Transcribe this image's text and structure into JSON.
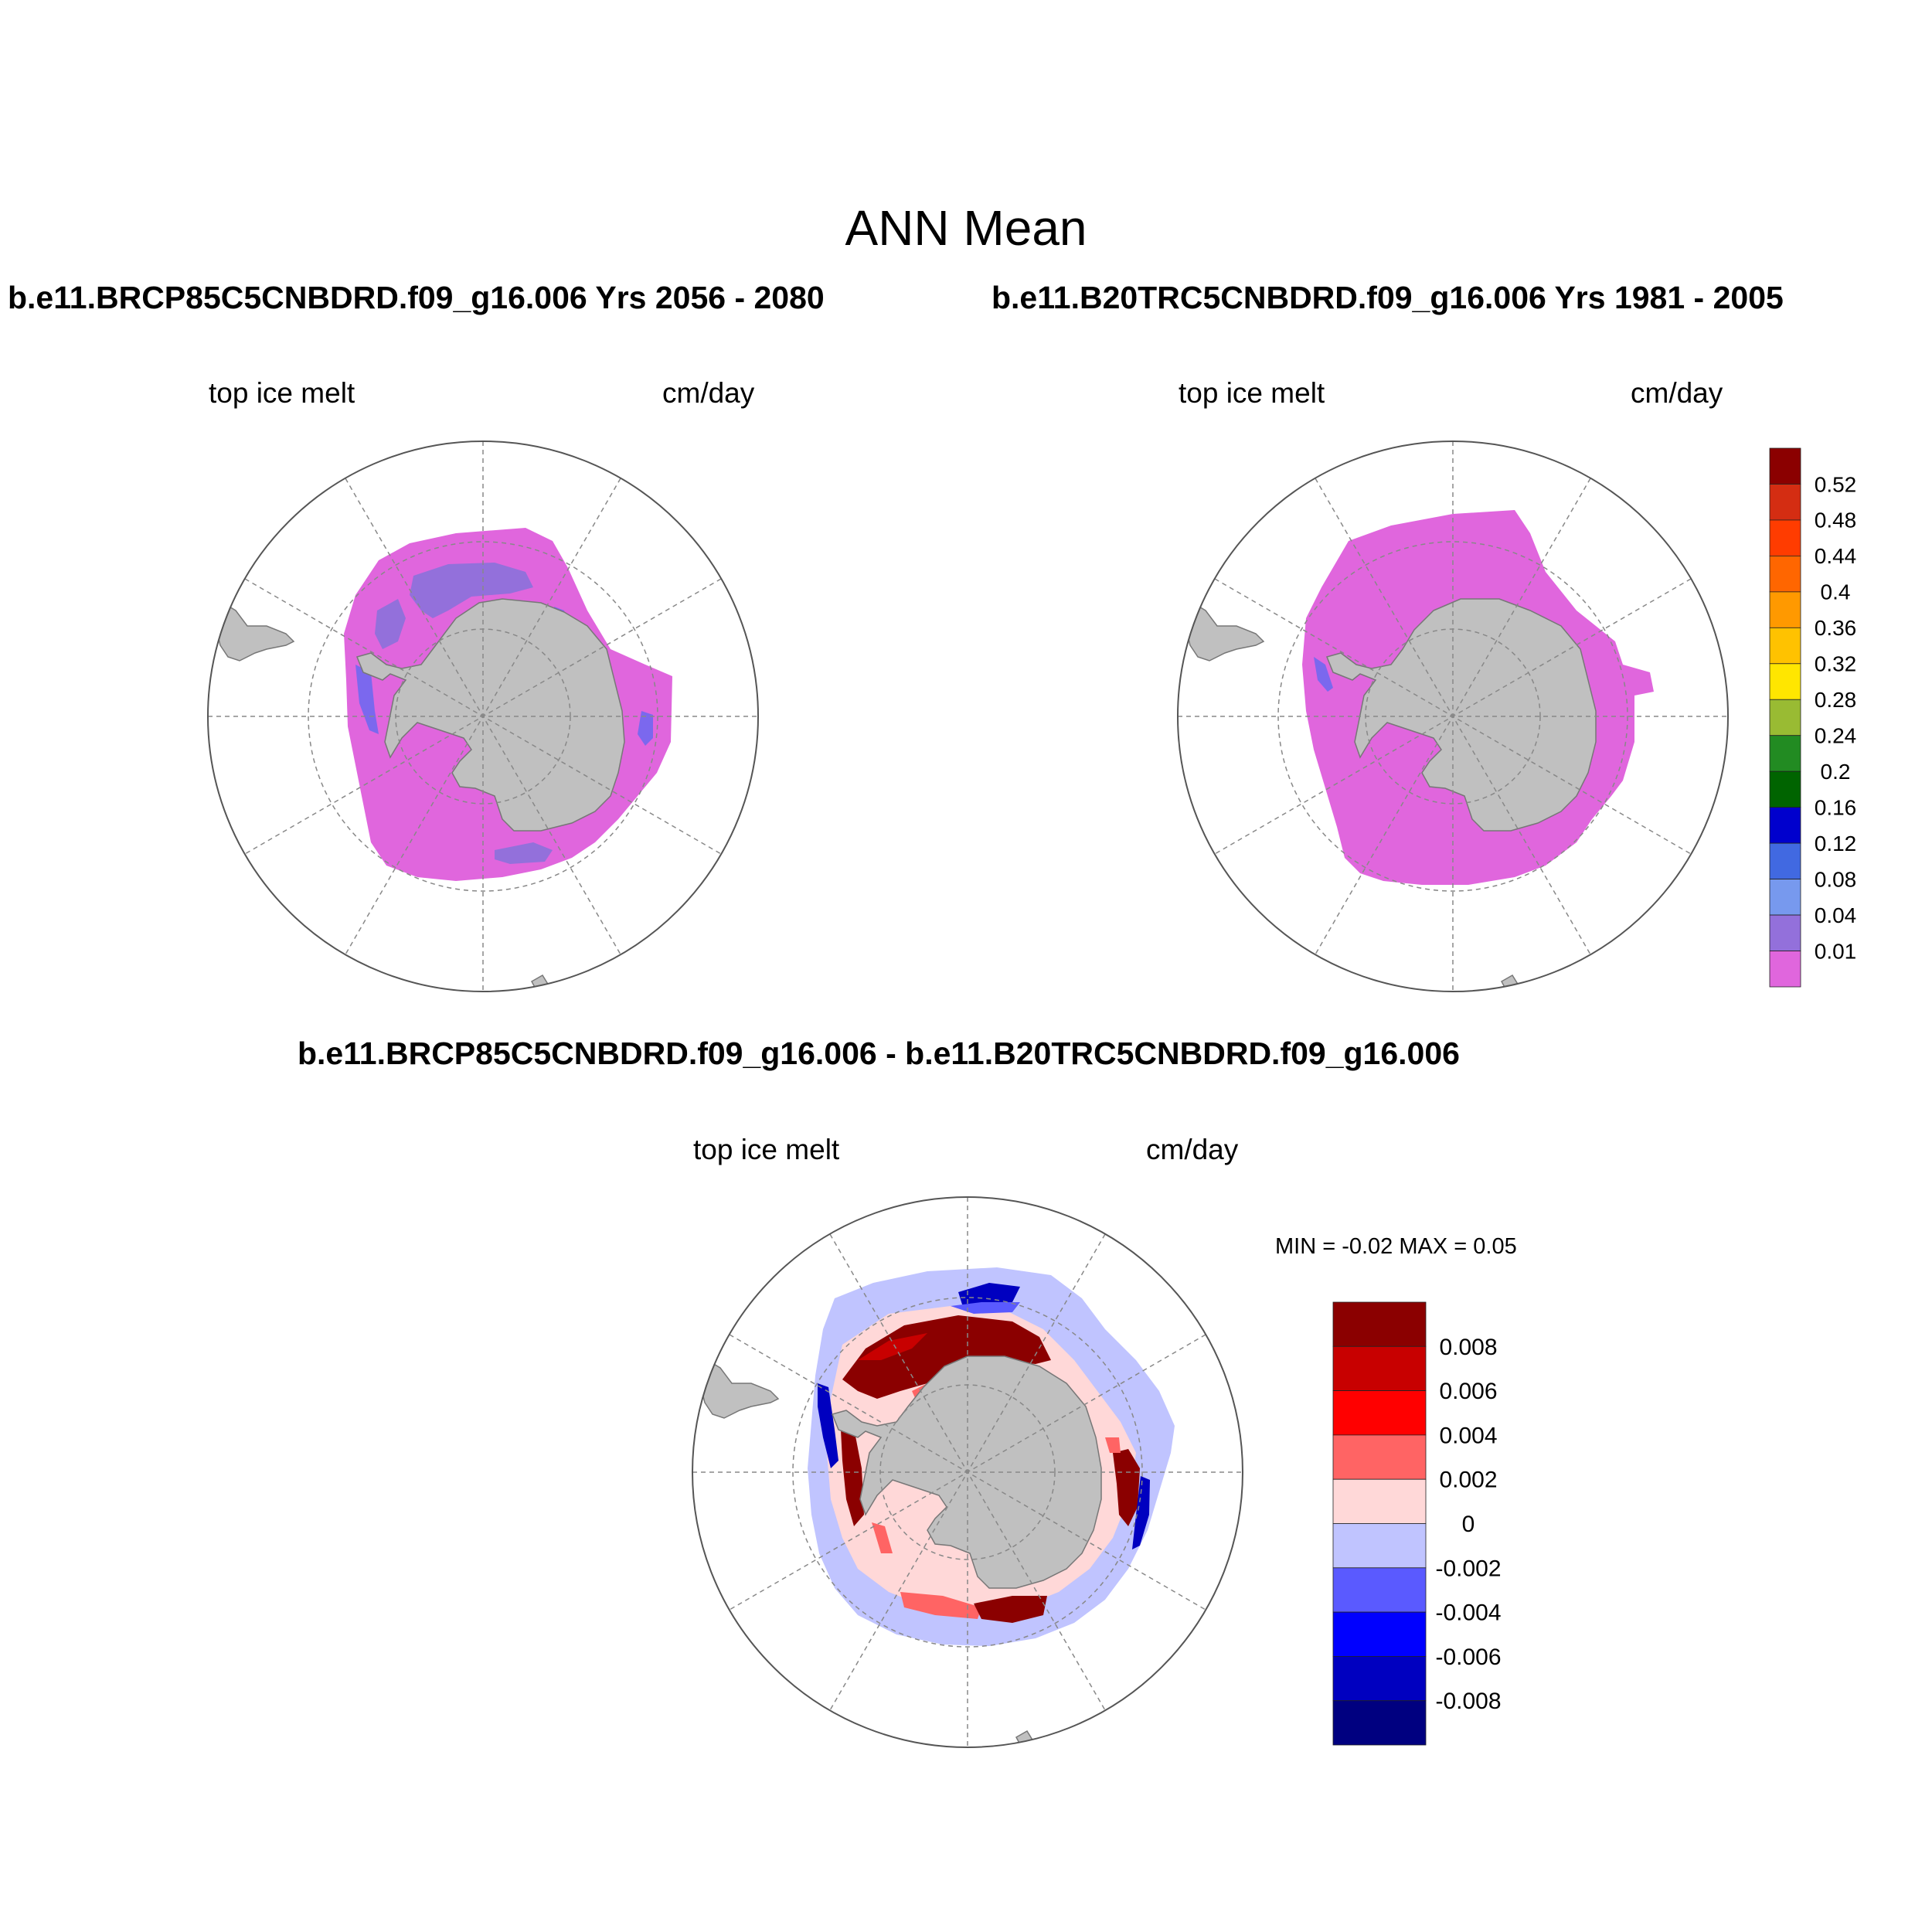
{
  "title": "ANN Mean",
  "panels": [
    {
      "id": "future",
      "case_title": "b.e11.BRCP85C5CNBDRD.f09_g16.006  Yrs 2056 - 2080",
      "variable": "top ice melt",
      "units": "cm/day"
    },
    {
      "id": "historical",
      "case_title": "b.e11.B20TRC5CNBDRD.f09_g16.006  Yrs 1981 - 2005",
      "variable": "top ice melt",
      "units": "cm/day"
    },
    {
      "id": "difference",
      "case_title": "b.e11.BRCP85C5CNBDRD.f09_g16.006 - b.e11.B20TRC5CNBDRD.f09_g16.006",
      "variable": "top ice melt",
      "units": "cm/day",
      "min_max": "MIN =  -0.02 MAX =   0.05"
    }
  ],
  "colorbar_main": {
    "labels": [
      "0.52",
      "0.48",
      "0.44",
      "0.4",
      "0.36",
      "0.32",
      "0.28",
      "0.24",
      "0.2",
      "0.16",
      "0.12",
      "0.08",
      "0.04",
      "0.01"
    ],
    "colors": [
      "#8b0000",
      "#d42d12",
      "#ff3c00",
      "#ff6600",
      "#ff9900",
      "#ffc200",
      "#ffe600",
      "#99bb33",
      "#228b22",
      "#006400",
      "#0000cd",
      "#4169e1",
      "#7799ee",
      "#9370db",
      "#e066dd"
    ]
  },
  "colorbar_diff": {
    "labels": [
      "0.008",
      "0.006",
      "0.004",
      "0.002",
      "0",
      "-0.002",
      "-0.004",
      "-0.006",
      "-0.008"
    ],
    "colors": [
      "#8b0000",
      "#c80000",
      "#ff0000",
      "#ff6464",
      "#ffd8d8",
      "#c0c4ff",
      "#5a5aff",
      "#0000ff",
      "#0000c0",
      "#000080"
    ]
  },
  "map_colors": {
    "land": "#c0c0c0",
    "ice_low": "#e066dd",
    "ice_lilac": "#9370db",
    "ice_blue": "#7b68ee"
  }
}
